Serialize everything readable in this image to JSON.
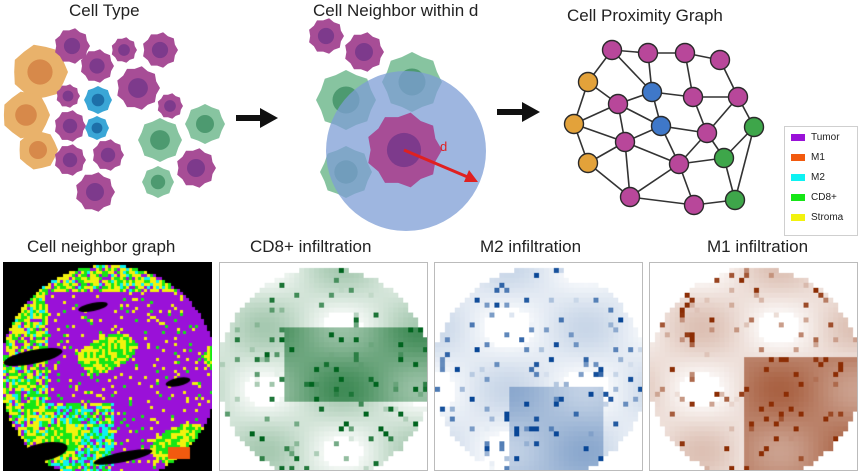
{
  "titles": {
    "cell_type": "Cell Type",
    "neighbor": "Cell Neighbor within d",
    "proximity": "Cell Proximity Graph",
    "d_label": "d",
    "neighbor_graph": "Cell neighbor graph",
    "cd8": "CD8+ infiltration",
    "m2": "M2 infiltration",
    "m1": "M1 infiltration"
  },
  "legend": [
    {
      "label": "Tumor",
      "color": "#9a11d8"
    },
    {
      "label": "M1",
      "color": "#f25a0f"
    },
    {
      "label": "M2",
      "color": "#0ef2f2"
    },
    {
      "label": "CD8+",
      "color": "#16e616"
    },
    {
      "label": "Stroma",
      "color": "#f2f20e"
    }
  ],
  "colors": {
    "tumor": "#a74d96",
    "tumor_nucleus": "#7d3a8c",
    "stroma": "#e9b26b",
    "stroma_nucleus": "#d7894a",
    "m2_cell": "#3aa6d6",
    "m2_nucleus": "#1d6fa8",
    "cd8_cell": "#87c4a0",
    "cd8_nucleus": "#4d9a70",
    "node_tumor": "#b8479a",
    "node_stroma": "#e3a23a",
    "node_m2": "#3f78c9",
    "node_cd8": "#3ea64a",
    "radius": "#7e9dd6",
    "arrow": "#e02020"
  }
}
